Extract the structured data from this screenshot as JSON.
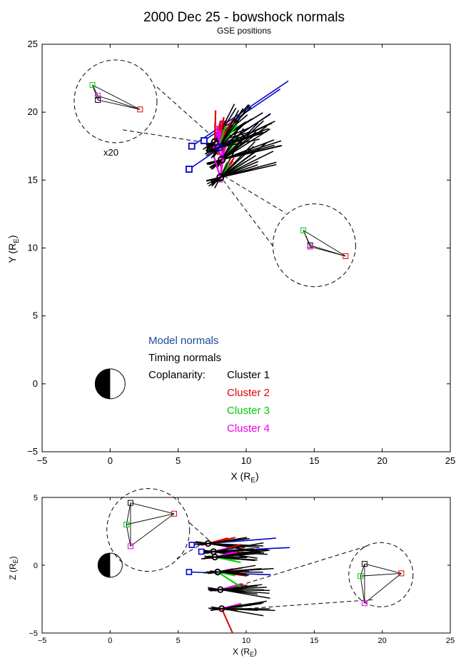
{
  "chart_data": [
    {
      "type": "scatter",
      "panel": "xy",
      "title": "2000 Dec 25 - bowshock normals",
      "subtitle": "GSE positions",
      "xlabel": "X (R_E)",
      "ylabel": "Y (R_E)",
      "xlim": [
        -5,
        25
      ],
      "ylim": [
        -5,
        25
      ],
      "xticks": [
        "−5",
        "0",
        "5",
        "10",
        "15",
        "20",
        "25"
      ],
      "yticks": [
        "−5",
        "0",
        "5",
        "10",
        "15",
        "20",
        "25"
      ],
      "zoom_label": "x20",
      "legend": {
        "model": "Model normals",
        "timing": "Timing normals",
        "coplanarity": "Coplanarity:",
        "cluster1": "Cluster 1",
        "cluster2": "Cluster 2",
        "cluster3": "Cluster 3",
        "cluster4": "Cluster 4"
      },
      "crossings": [
        {
          "x": 7.7,
          "y": 17.8
        },
        {
          "x": 8.2,
          "y": 16.5
        },
        {
          "x": 8.1,
          "y": 15.2
        },
        {
          "x": 8.0,
          "y": 17.4
        }
      ],
      "model_positions": [
        {
          "x": 6.0,
          "y": 17.5
        },
        {
          "x": 6.9,
          "y": 17.9
        },
        {
          "x": 5.8,
          "y": 15.8
        }
      ],
      "zoom_upper": {
        "center": {
          "x": 0.4,
          "y": 20.8
        },
        "sc": [
          {
            "name": "Cluster 3",
            "x": -1.3,
            "y": 22.0
          },
          {
            "name": "Cluster 4",
            "x": -0.9,
            "y": 21.2
          },
          {
            "name": "Cluster 1",
            "x": -0.9,
            "y": 20.9
          },
          {
            "name": "Cluster 2",
            "x": 2.2,
            "y": 20.2
          }
        ]
      },
      "zoom_lower": {
        "center": {
          "x": 15.0,
          "y": 10.2
        },
        "sc": [
          {
            "name": "Cluster 3",
            "x": 14.2,
            "y": 11.3
          },
          {
            "name": "Cluster 1",
            "x": 14.7,
            "y": 10.2
          },
          {
            "name": "Cluster 4",
            "x": 14.7,
            "y": 10.1
          },
          {
            "name": "Cluster 2",
            "x": 17.3,
            "y": 9.4
          }
        ]
      }
    },
    {
      "type": "scatter",
      "panel": "xz",
      "xlabel": "X (R_E)",
      "ylabel": "Z (R_E)",
      "xlim": [
        -5,
        25
      ],
      "ylim": [
        -5,
        5
      ],
      "xticks": [
        "−5",
        "0",
        "5",
        "10",
        "15",
        "20",
        "25"
      ],
      "yticks": [
        "−5",
        "0",
        "5"
      ],
      "crossings": [
        {
          "x": 7.2,
          "y": 1.6
        },
        {
          "x": 7.6,
          "y": 1.0
        },
        {
          "x": 7.7,
          "y": 0.6
        },
        {
          "x": 7.9,
          "y": -0.5
        },
        {
          "x": 8.1,
          "y": -1.8
        },
        {
          "x": 8.2,
          "y": -3.2
        }
      ],
      "model_positions": [
        {
          "x": 6.0,
          "y": 1.5
        },
        {
          "x": 6.7,
          "y": 1.0
        },
        {
          "x": 5.8,
          "y": -0.5
        }
      ],
      "zoom_left": {
        "center": {
          "x": 2.8,
          "y": 2.6
        },
        "sc": [
          {
            "name": "Cluster 1",
            "x": 1.5,
            "y": 4.6
          },
          {
            "name": "Cluster 2",
            "x": 4.7,
            "y": 3.8
          },
          {
            "name": "Cluster 3",
            "x": 1.2,
            "y": 3.0
          },
          {
            "name": "Cluster 4",
            "x": 1.5,
            "y": 1.4
          }
        ]
      },
      "zoom_right": {
        "center": {
          "x": 19.9,
          "y": -0.7
        },
        "sc": [
          {
            "name": "Cluster 1",
            "x": 18.7,
            "y": 0.1
          },
          {
            "name": "Cluster 2",
            "x": 21.4,
            "y": -0.6
          },
          {
            "name": "Cluster 3",
            "x": 18.4,
            "y": -0.8
          },
          {
            "name": "Cluster 4",
            "x": 18.7,
            "y": -2.8
          }
        ]
      }
    }
  ],
  "colors": {
    "model": "#0000cc",
    "model_text": "#1a4a9a",
    "timing": "#000000",
    "cluster1": "#000000",
    "cluster2": "#e00000",
    "cluster3": "#00cc00",
    "cluster4": "#ee00ee"
  }
}
